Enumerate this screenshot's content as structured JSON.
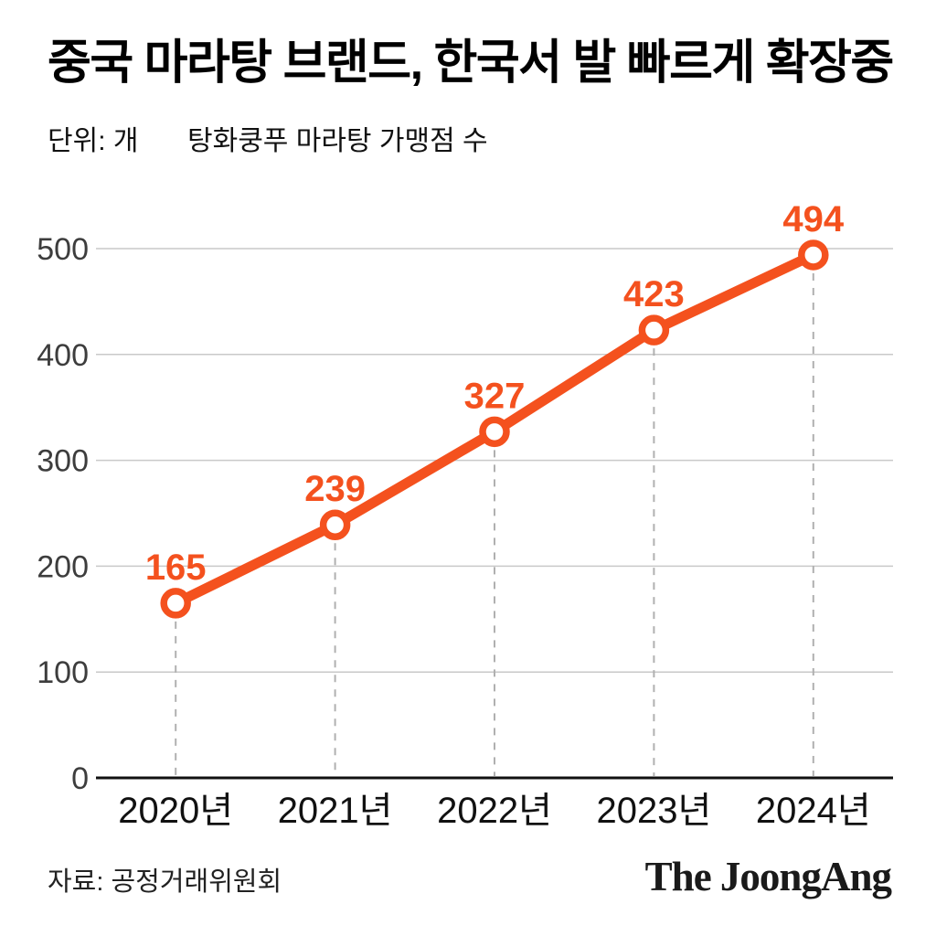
{
  "header": {
    "title": "중국 마라탕 브랜드, 한국서 발 빠르게 확장중",
    "unit_label": "단위: 개",
    "series_label": "탕화쿵푸 마라탕 가맹점 수"
  },
  "footer": {
    "source": "자료: 공정거래위원회",
    "logo": "The JoongAng"
  },
  "colors": {
    "accent": "#F4511E",
    "grid": "#C9C9C9",
    "dashed_guide": "#B0B0B0",
    "axis": "#111111",
    "y_tick_text": "#3D3D3D",
    "x_tick_text": "#111111",
    "marker_fill": "#FFFFFF",
    "background": "#FFFFFF"
  },
  "chart_data": {
    "type": "line",
    "title": "탕화쿵푸 마라탕 가맹점 수",
    "unit": "개",
    "categories": [
      "2020년",
      "2021년",
      "2022년",
      "2023년",
      "2024년"
    ],
    "values": [
      165,
      239,
      327,
      423,
      494
    ],
    "ylim": [
      0,
      500
    ],
    "yticks": [
      0,
      100,
      200,
      300,
      400,
      500
    ],
    "xlabel": "",
    "ylabel": "",
    "grid": "horizontal",
    "point_guides": "dashed-vertical",
    "legend": "none",
    "value_labels": "above-points"
  }
}
